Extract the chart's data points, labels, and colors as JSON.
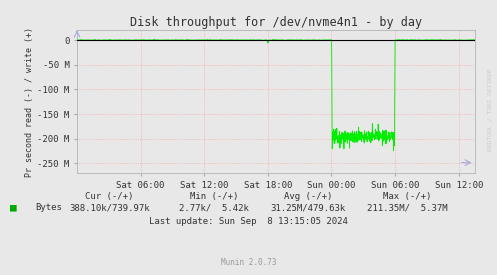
{
  "title": "Disk throughput for /dev/nvme4n1 - by day",
  "ylabel": "Pr second read (-) / write (+)",
  "background_color": "#e8e8e8",
  "plot_bg_color": "#e8e8e8",
  "grid_color": "#ff9999",
  "line_color": "#00ee00",
  "ylim": [
    -270000000,
    20000000
  ],
  "ytick_vals": [
    0,
    -50000000,
    -100000000,
    -150000000,
    -200000000,
    -250000000
  ],
  "ytick_labels": [
    "0",
    "-50 M",
    "-100 M",
    "-150 M",
    "-200 M",
    "-250 M"
  ],
  "xtick_hours": [
    6,
    12,
    18,
    24,
    30,
    36
  ],
  "xlabel_ticks": [
    "Sat 06:00",
    "Sat 12:00",
    "Sat 18:00",
    "Sun 00:00",
    "Sun 06:00",
    "Sun 12:00"
  ],
  "xlim": [
    0,
    37.5
  ],
  "legend_label": "Bytes",
  "legend_color": "#00aa00",
  "cur_label": "Cur (-/+)",
  "cur_value": "388.10k/739.97k",
  "min_label": "Min (-/+)",
  "min_value": "2.77k/  5.42k",
  "avg_label": "Avg (-/+)",
  "avg_value": "31.25M/479.63k",
  "max_label": "Max (-/+)",
  "max_value": "211.35M/  5.37M",
  "last_update": "Last update: Sun Sep  8 13:15:05 2024",
  "munin_version": "Munin 2.0.73",
  "rrdtool_label": "RRDTOOL / TOBI OETIKER",
  "title_color": "#333333",
  "text_color": "#333333",
  "footer_color": "#999999",
  "spike_x": 24.0,
  "recovery_x": 30.0,
  "base_level": -195000000,
  "spike_min": -220000000
}
